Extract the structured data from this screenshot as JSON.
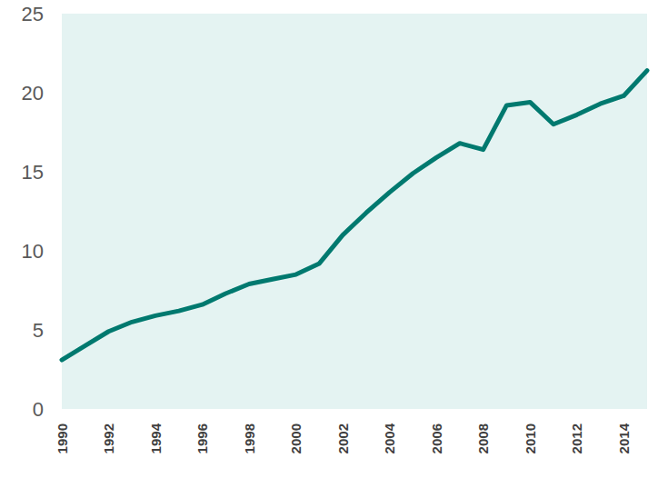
{
  "chart_data": {
    "type": "line",
    "categories": [
      "1990",
      null,
      "1992",
      null,
      "1994",
      null,
      "1996",
      null,
      "1998",
      null,
      "2000",
      null,
      "2002",
      null,
      "2004",
      null,
      "2006",
      null,
      "2008",
      null,
      "2010",
      null,
      "2012",
      null,
      "2014",
      null
    ],
    "values": [
      3.1,
      4.0,
      4.9,
      5.5,
      5.9,
      6.2,
      6.6,
      7.3,
      7.9,
      8.2,
      8.5,
      9.2,
      11.0,
      12.4,
      13.7,
      14.9,
      15.9,
      16.8,
      16.4,
      19.2,
      19.4,
      18.0,
      18.6,
      19.3,
      19.8,
      21.4
    ],
    "color": "#00796f",
    "ylim": [
      0,
      25
    ],
    "yticks": [
      0,
      5,
      10,
      15,
      20,
      25
    ],
    "grid": false
  }
}
